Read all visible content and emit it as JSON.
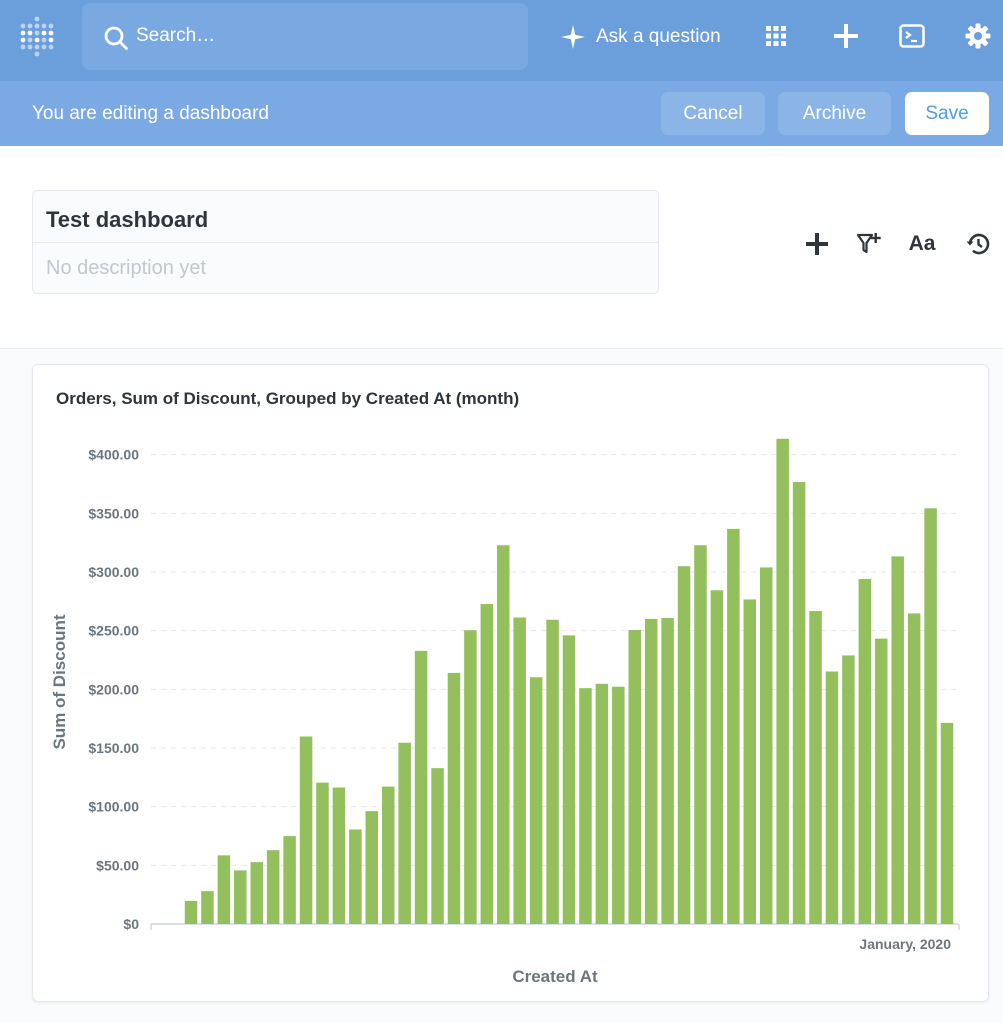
{
  "nav": {
    "search_placeholder": "Search…",
    "ask_label": "Ask a question"
  },
  "editbar": {
    "message": "You are editing a dashboard",
    "cancel": "Cancel",
    "archive": "Archive",
    "save": "Save"
  },
  "dashboard": {
    "title": "Test dashboard",
    "description": "No description yet",
    "text_button": "Aa"
  },
  "colors": {
    "nav": "#6a9fdc",
    "editbar": "#7ba9e3",
    "bar": "#93c05d",
    "accent": "#509ee3"
  },
  "card": {
    "title": "Orders, Sum of Discount, Grouped by Created At (month)"
  },
  "chart_data": {
    "type": "bar",
    "title": "Orders, Sum of Discount, Grouped by Created At (month)",
    "xlabel": "Created At",
    "ylabel": "Sum of Discount",
    "ylim": [
      0,
      412.5
    ],
    "yticks": [
      0,
      50,
      100,
      150,
      200,
      250,
      300,
      350,
      400
    ],
    "ytick_labels": [
      "$0",
      "$50.00",
      "$100.00",
      "$150.00",
      "$200.00",
      "$250.00",
      "$300.00",
      "$350.00",
      "$400.00"
    ],
    "x_tick_label": "January, 2020",
    "grid": true,
    "color": "#93c05d",
    "values": [
      19.6,
      28.0,
      58.5,
      45.7,
      52.7,
      62.9,
      74.9,
      159.8,
      120.5,
      116.3,
      80.6,
      96.2,
      117.1,
      154.5,
      232.8,
      132.8,
      214.0,
      250.4,
      272.7,
      322.8,
      261.2,
      210.3,
      259.3,
      246.0,
      201.0,
      204.7,
      202.2,
      250.6,
      260.0,
      260.8,
      304.9,
      322.8,
      284.4,
      336.7,
      276.6,
      303.9,
      413.5,
      376.7,
      266.7,
      215.2,
      228.9,
      294.0,
      243.2,
      313.3,
      264.7,
      354.3,
      171.4
    ]
  }
}
